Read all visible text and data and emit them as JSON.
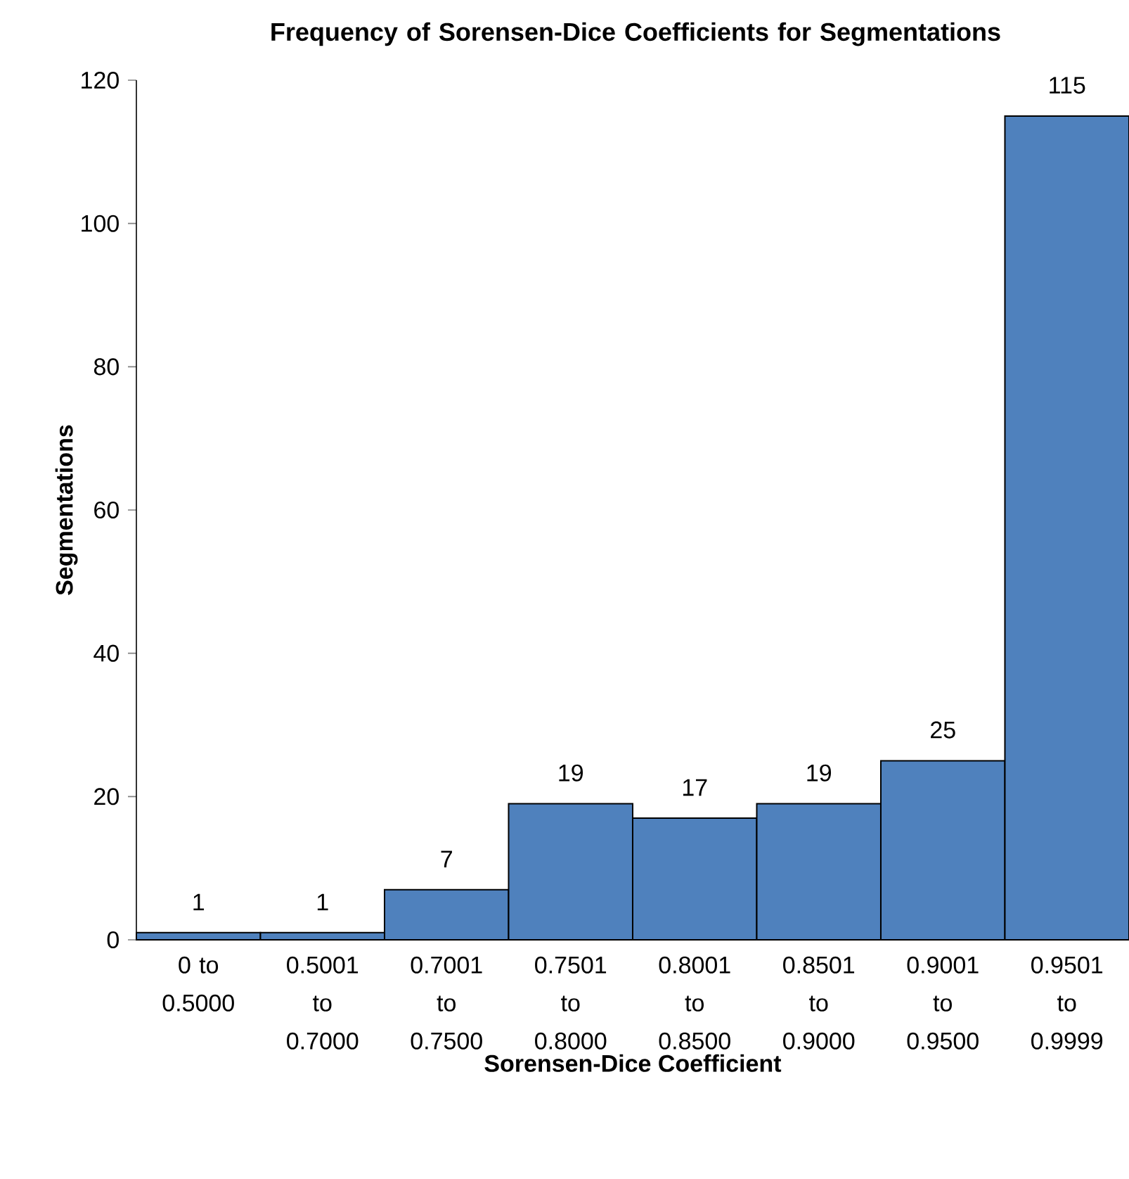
{
  "chart_data": {
    "type": "bar",
    "title": "Frequency of Sorensen-Dice Coefficients for Segmentations",
    "xlabel": "Sorensen-Dice Coefficient",
    "ylabel": "Segmentations",
    "categories": [
      "0 to 0.5000",
      "0.5001 to 0.7000",
      "0.7001 to 0.7500",
      "0.7501 to 0.8000",
      "0.8001 to 0.8500",
      "0.8501 to 0.9000",
      "0.9001 to 0.9500",
      "0.9501 to 0.9999"
    ],
    "values": [
      1,
      1,
      7,
      19,
      17,
      19,
      25,
      115
    ],
    "color": "#4f81bd",
    "ylim": [
      0,
      120
    ],
    "yticks": [
      0,
      20,
      40,
      60,
      80,
      100,
      120
    ],
    "data_labels": true
  }
}
